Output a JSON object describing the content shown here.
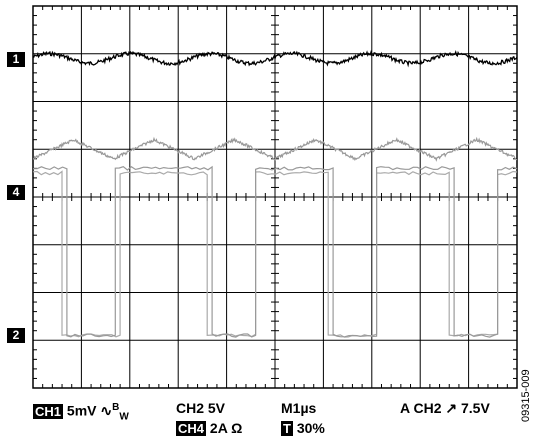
{
  "chart_data": {
    "type": "line",
    "grid": true,
    "divisions": {
      "x": 10,
      "y": 8
    },
    "series": [
      {
        "name": "1",
        "waveform": "sine",
        "cycles": 6,
        "baseline_div": 1.1,
        "amplitude_div": 0.1,
        "color": "#000000"
      },
      {
        "name": "",
        "waveform": "triangle",
        "cycles": 6,
        "baseline_div": 3.0,
        "amplitude_div": 0.2,
        "color": "#999999"
      },
      {
        "name": "4",
        "waveform": "square",
        "high_div": 3.5,
        "low_div": 6.9,
        "transitions_div": [
          0.6,
          1.8,
          3.6,
          4.6,
          6.1,
          7.1,
          8.6,
          9.6
        ],
        "start_state": "high",
        "color": "#aaaaaa"
      },
      {
        "name": "2",
        "waveform": "square",
        "high_div": 3.4,
        "low_div": 6.9,
        "transitions_div": [
          0.7,
          1.7,
          3.7,
          4.6,
          6.2,
          7.1,
          8.7,
          9.6
        ],
        "start_state": "high",
        "color": "#999999"
      }
    ],
    "channel_markers": [
      "1",
      "4",
      "2"
    ]
  },
  "settings": {
    "ch1_badge": "CH1",
    "ch1_scale": "5mV",
    "bw_symbol": "∿",
    "bw_sup": "B",
    "bw_sub": "W",
    "ch2": "CH2  5V",
    "ch4_badge": "CH4",
    "ch4_scale": "2A Ω",
    "timebase": "M1µs",
    "trigger": "A  CH2 ↗ 7.5V",
    "t_badge": "T",
    "t_pos": "30%"
  },
  "figure_id": "09315-009"
}
